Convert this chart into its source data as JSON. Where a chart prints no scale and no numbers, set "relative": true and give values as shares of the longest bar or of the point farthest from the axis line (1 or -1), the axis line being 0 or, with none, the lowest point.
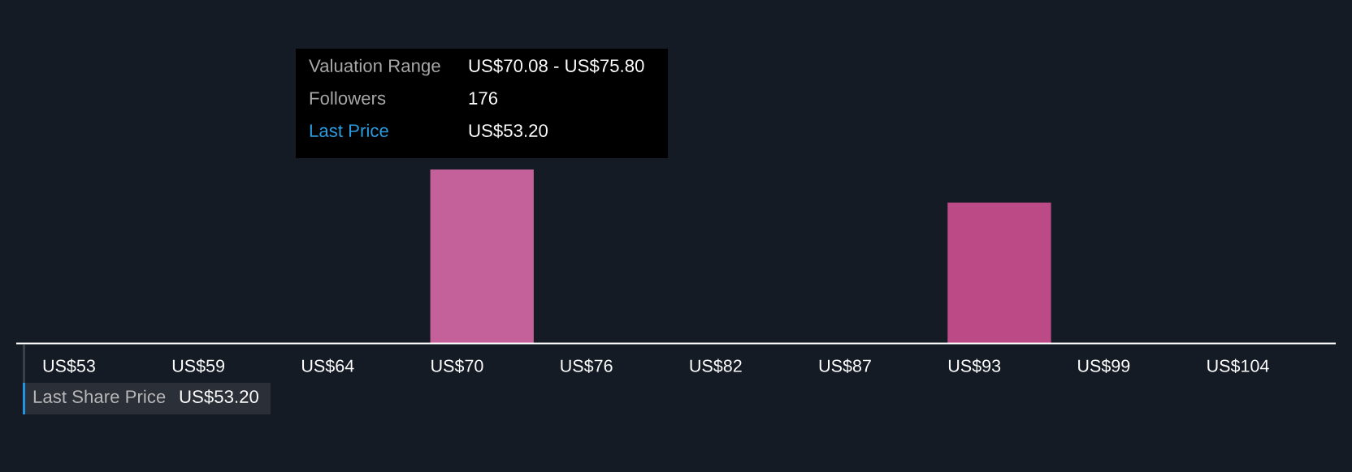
{
  "chart_data": {
    "type": "bar",
    "relative": true,
    "categories": [
      "US$53",
      "US$59",
      "US$64",
      "US$70",
      "US$76",
      "US$82",
      "US$87",
      "US$93",
      "US$99",
      "US$104"
    ],
    "values": [
      0,
      0,
      0,
      1,
      0,
      0,
      0,
      0.81,
      0,
      0
    ],
    "colors": [
      "#bc4a87",
      "#bc4a87",
      "#bc4a87",
      "#c4619a",
      "#bc4a87",
      "#bc4a87",
      "#bc4a87",
      "#bc4a87",
      "#bc4a87",
      "#bc4a87"
    ],
    "annotations": [
      "Valuation Range",
      "US$70.08 - US$75.80",
      "Followers",
      "176",
      "Last Price",
      "US$53.20",
      "Last Share Price",
      "US$53.20"
    ]
  }
}
